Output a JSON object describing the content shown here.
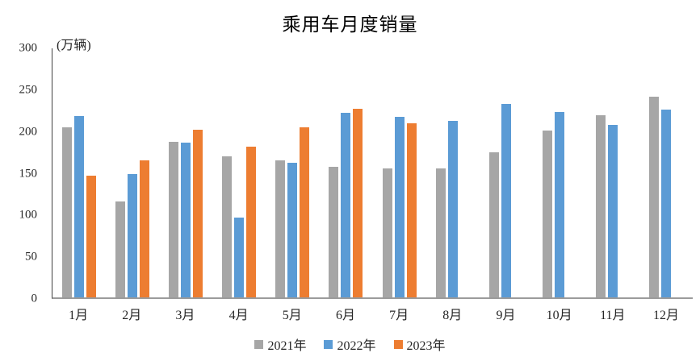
{
  "chart": {
    "title": "乘用车月度销量",
    "unit_label": "(万辆)"
  },
  "chart_data": {
    "type": "bar",
    "title": "乘用车月度销量",
    "ylabel": "(万辆)",
    "categories": [
      "1月",
      "2月",
      "3月",
      "4月",
      "5月",
      "6月",
      "7月",
      "8月",
      "9月",
      "10月",
      "11月",
      "12月"
    ],
    "series": [
      {
        "name": "2021年",
        "color": "#A6A6A6",
        "values": [
          204.5,
          115.5,
          187.4,
          170.4,
          164.6,
          156.9,
          155.1,
          155.2,
          175.1,
          200.7,
          219.2,
          242.2
        ]
      },
      {
        "name": "2022年",
        "color": "#5B9BD5",
        "values": [
          218.6,
          148.7,
          186.4,
          96.5,
          162.3,
          222.2,
          217.4,
          212.5,
          233.2,
          223.1,
          207.5,
          226.3
        ]
      },
      {
        "name": "2023年",
        "color": "#ED7D31",
        "values": [
          146.9,
          165.3,
          201.7,
          181.1,
          205.1,
          226.8,
          210.0,
          null,
          null,
          null,
          null,
          null
        ]
      }
    ],
    "ylim": [
      0,
      300
    ],
    "yticks": [
      0,
      50,
      100,
      150,
      200,
      250,
      300
    ],
    "grid": false,
    "legend_position": "bottom"
  }
}
